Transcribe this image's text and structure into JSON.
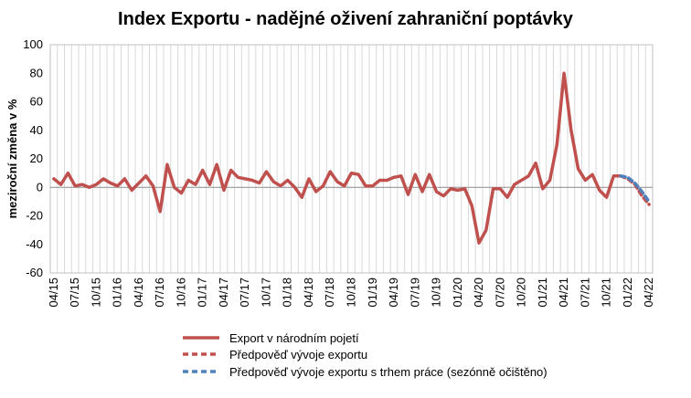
{
  "chart_data": {
    "type": "line",
    "title": "Index Exportu - nadějné oživení zahraniční poptávky",
    "ylabel": "meziroční změna v %",
    "xlabel": "",
    "ylim": [
      -60,
      100
    ],
    "yticks": [
      -60,
      -40,
      -20,
      0,
      20,
      40,
      60,
      80,
      100
    ],
    "grid": "vertical",
    "legend_position": "bottom",
    "x": [
      "04/15",
      "05/15",
      "06/15",
      "07/15",
      "08/15",
      "09/15",
      "10/15",
      "11/15",
      "12/15",
      "01/16",
      "02/16",
      "03/16",
      "04/16",
      "05/16",
      "06/16",
      "07/16",
      "08/16",
      "09/16",
      "10/16",
      "11/16",
      "12/16",
      "01/17",
      "02/17",
      "03/17",
      "04/17",
      "05/17",
      "06/17",
      "07/17",
      "08/17",
      "09/17",
      "10/17",
      "11/17",
      "12/17",
      "01/18",
      "02/18",
      "03/18",
      "04/18",
      "05/18",
      "06/18",
      "07/18",
      "08/18",
      "09/18",
      "10/18",
      "11/18",
      "12/18",
      "01/19",
      "02/19",
      "03/19",
      "04/19",
      "05/19",
      "06/19",
      "07/19",
      "08/19",
      "09/19",
      "10/19",
      "11/19",
      "12/19",
      "01/20",
      "02/20",
      "03/20",
      "04/20",
      "05/20",
      "06/20",
      "07/20",
      "08/20",
      "09/20",
      "10/20",
      "11/20",
      "12/20",
      "01/21",
      "02/21",
      "03/21",
      "04/21",
      "05/21",
      "06/21",
      "07/21",
      "08/21",
      "09/21",
      "10/21",
      "11/21",
      "12/21",
      "01/22",
      "02/22",
      "03/22",
      "04/22"
    ],
    "xtick_labels": [
      "04/15",
      "07/15",
      "10/15",
      "01/16",
      "04/16",
      "07/16",
      "10/16",
      "01/17",
      "04/17",
      "07/17",
      "10/17",
      "01/18",
      "04/18",
      "07/18",
      "10/18",
      "01/19",
      "04/19",
      "07/19",
      "10/19",
      "01/20",
      "04/20",
      "07/20",
      "10/20",
      "01/21",
      "04/21",
      "07/21",
      "10/21",
      "01/22",
      "04/22"
    ],
    "series": [
      {
        "name": "Export v národním pojetí",
        "color": "#c0504d",
        "style": "solid",
        "values": [
          6,
          2,
          10,
          1,
          2,
          0,
          2,
          6,
          3,
          1,
          6,
          -2,
          3,
          8,
          1,
          -17,
          16,
          0,
          -4,
          5,
          2,
          12,
          2,
          16,
          -2,
          12,
          7,
          6,
          5,
          3,
          11,
          4,
          1,
          5,
          0,
          -7,
          6,
          -3,
          1,
          11,
          4,
          1,
          10,
          9,
          1,
          1,
          5,
          5,
          7,
          8,
          -5,
          9,
          -3,
          9,
          -3,
          -6,
          -1,
          -2,
          -1,
          -13,
          -39,
          -30,
          -1,
          -1,
          -7,
          2,
          5,
          8,
          17,
          -1,
          5,
          30,
          80,
          40,
          13,
          5,
          9,
          -2,
          -7,
          8,
          8,
          null,
          null,
          null,
          null
        ]
      },
      {
        "name": "Předpověď vývoje exportu",
        "color": "#c0504d",
        "style": "dashed",
        "values": [
          null,
          null,
          null,
          null,
          null,
          null,
          null,
          null,
          null,
          null,
          null,
          null,
          null,
          null,
          null,
          null,
          null,
          null,
          null,
          null,
          null,
          null,
          null,
          null,
          null,
          null,
          null,
          null,
          null,
          null,
          null,
          null,
          null,
          null,
          null,
          null,
          null,
          null,
          null,
          null,
          null,
          null,
          null,
          null,
          null,
          null,
          null,
          null,
          null,
          null,
          null,
          null,
          null,
          null,
          null,
          null,
          null,
          null,
          null,
          null,
          null,
          null,
          null,
          null,
          null,
          null,
          null,
          null,
          null,
          null,
          null,
          null,
          null,
          null,
          null,
          null,
          null,
          null,
          null,
          null,
          8,
          6,
          2,
          -6,
          -12
        ]
      },
      {
        "name": "Předpověď vývoje exportu s trhem práce (sezónně očištěno)",
        "color": "#4f81bd",
        "style": "dashed",
        "values": [
          null,
          null,
          null,
          null,
          null,
          null,
          null,
          null,
          null,
          null,
          null,
          null,
          null,
          null,
          null,
          null,
          null,
          null,
          null,
          null,
          null,
          null,
          null,
          null,
          null,
          null,
          null,
          null,
          null,
          null,
          null,
          null,
          null,
          null,
          null,
          null,
          null,
          null,
          null,
          null,
          null,
          null,
          null,
          null,
          null,
          null,
          null,
          null,
          null,
          null,
          null,
          null,
          null,
          null,
          null,
          null,
          null,
          null,
          null,
          null,
          null,
          null,
          null,
          null,
          null,
          null,
          null,
          null,
          null,
          null,
          null,
          null,
          null,
          null,
          null,
          null,
          null,
          null,
          null,
          null,
          8,
          7,
          3,
          -3,
          -10
        ]
      }
    ]
  }
}
